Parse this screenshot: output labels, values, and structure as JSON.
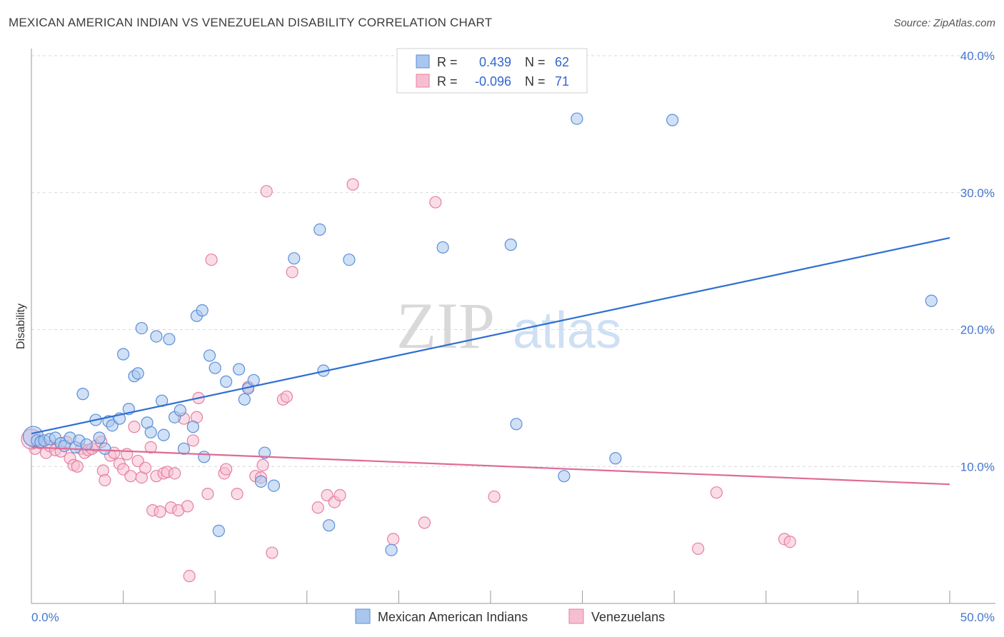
{
  "title": "MEXICAN AMERICAN INDIAN VS VENEZUELAN DISABILITY CORRELATION CHART",
  "source": "Source: ZipAtlas.com",
  "watermark": {
    "zip": "ZIP",
    "atlas": "atlas"
  },
  "chart_data": {
    "type": "scatter",
    "ylabel": "Disability",
    "xlim": [
      0,
      50
    ],
    "ylim": [
      0,
      40
    ],
    "x_tick_labels": [
      "0.0%",
      "50.0%"
    ],
    "y_ticks": [
      10,
      20,
      30,
      40
    ],
    "y_tick_labels": [
      "10.0%",
      "20.0%",
      "30.0%",
      "40.0%"
    ],
    "grid": true,
    "legend": {
      "placement": "top-center",
      "rows": [
        {
          "r_label": "R =",
          "r_value": "0.439",
          "n_label": "N =",
          "n_value": "62"
        },
        {
          "r_label": "R =",
          "r_value": "-0.096",
          "n_label": "N =",
          "n_value": "71"
        }
      ]
    },
    "colors": {
      "blue_fill": "#a9c6ee",
      "blue_stroke": "#5b8fd6",
      "blue_line": "#2e6fd1",
      "pink_fill": "#f6bfd1",
      "pink_stroke": "#e67fa2",
      "pink_line": "#e06a95"
    },
    "series": [
      {
        "name": "Mexican American Indians",
        "color": "#5b8fd6",
        "trend": {
          "x": [
            0,
            50
          ],
          "y": [
            12.4,
            26.7
          ]
        },
        "points": [
          [
            0.1,
            12.2
          ],
          [
            0.3,
            11.9
          ],
          [
            0.5,
            11.8
          ],
          [
            0.7,
            11.9
          ],
          [
            1.0,
            12.0
          ],
          [
            1.3,
            12.1
          ],
          [
            1.6,
            11.7
          ],
          [
            1.8,
            11.5
          ],
          [
            2.1,
            12.1
          ],
          [
            2.4,
            11.4
          ],
          [
            2.6,
            11.9
          ],
          [
            2.8,
            15.3
          ],
          [
            3.0,
            11.6
          ],
          [
            3.5,
            13.4
          ],
          [
            3.7,
            12.1
          ],
          [
            4.0,
            11.3
          ],
          [
            4.2,
            13.3
          ],
          [
            4.4,
            13.0
          ],
          [
            4.8,
            13.5
          ],
          [
            5.0,
            18.2
          ],
          [
            5.3,
            14.2
          ],
          [
            5.6,
            16.6
          ],
          [
            5.8,
            16.8
          ],
          [
            6.0,
            20.1
          ],
          [
            6.3,
            13.2
          ],
          [
            6.5,
            12.5
          ],
          [
            6.8,
            19.5
          ],
          [
            7.1,
            14.8
          ],
          [
            7.2,
            12.3
          ],
          [
            7.5,
            19.3
          ],
          [
            7.8,
            13.6
          ],
          [
            8.1,
            14.1
          ],
          [
            8.3,
            11.3
          ],
          [
            8.8,
            12.9
          ],
          [
            9.0,
            21.0
          ],
          [
            9.3,
            21.4
          ],
          [
            9.4,
            10.7
          ],
          [
            9.7,
            18.1
          ],
          [
            10.0,
            17.2
          ],
          [
            10.2,
            5.3
          ],
          [
            10.6,
            16.2
          ],
          [
            11.3,
            17.1
          ],
          [
            11.6,
            14.9
          ],
          [
            11.8,
            15.7
          ],
          [
            12.1,
            16.3
          ],
          [
            12.5,
            8.9
          ],
          [
            12.7,
            11.0
          ],
          [
            13.2,
            8.6
          ],
          [
            14.3,
            25.2
          ],
          [
            15.7,
            27.3
          ],
          [
            15.9,
            17.0
          ],
          [
            16.2,
            5.7
          ],
          [
            17.3,
            25.1
          ],
          [
            19.6,
            3.9
          ],
          [
            22.4,
            26.0
          ],
          [
            26.1,
            26.2
          ],
          [
            26.4,
            13.1
          ],
          [
            29.0,
            9.3
          ],
          [
            29.7,
            35.4
          ],
          [
            31.8,
            10.6
          ],
          [
            34.9,
            35.3
          ],
          [
            49.0,
            22.1
          ]
        ]
      },
      {
        "name": "Venezuelans",
        "color": "#e67fa2",
        "trend": {
          "x": [
            0,
            50
          ],
          "y": [
            11.4,
            8.7
          ]
        },
        "points": [
          [
            0.2,
            11.3
          ],
          [
            0.5,
            11.7
          ],
          [
            0.8,
            11.0
          ],
          [
            1.0,
            11.5
          ],
          [
            1.3,
            11.2
          ],
          [
            1.6,
            11.1
          ],
          [
            1.9,
            11.8
          ],
          [
            2.1,
            10.6
          ],
          [
            2.3,
            10.1
          ],
          [
            2.5,
            10.0
          ],
          [
            2.7,
            11.3
          ],
          [
            2.9,
            11.0
          ],
          [
            3.1,
            11.2
          ],
          [
            3.3,
            11.3
          ],
          [
            3.5,
            11.5
          ],
          [
            3.8,
            11.8
          ],
          [
            3.9,
            9.7
          ],
          [
            4.0,
            9.0
          ],
          [
            4.3,
            10.8
          ],
          [
            4.5,
            11.0
          ],
          [
            4.8,
            10.2
          ],
          [
            5.0,
            9.8
          ],
          [
            5.2,
            10.9
          ],
          [
            5.4,
            9.3
          ],
          [
            5.6,
            12.9
          ],
          [
            5.8,
            10.4
          ],
          [
            6.0,
            9.2
          ],
          [
            6.2,
            9.9
          ],
          [
            6.5,
            11.4
          ],
          [
            6.6,
            6.8
          ],
          [
            6.8,
            9.3
          ],
          [
            7.0,
            6.7
          ],
          [
            7.2,
            9.5
          ],
          [
            7.4,
            9.6
          ],
          [
            7.6,
            7.0
          ],
          [
            7.8,
            9.5
          ],
          [
            8.0,
            6.8
          ],
          [
            8.3,
            13.5
          ],
          [
            8.5,
            7.1
          ],
          [
            8.6,
            2.0
          ],
          [
            8.8,
            11.9
          ],
          [
            9.0,
            13.6
          ],
          [
            9.1,
            15.0
          ],
          [
            9.6,
            8.0
          ],
          [
            9.8,
            25.1
          ],
          [
            10.5,
            9.5
          ],
          [
            10.6,
            9.8
          ],
          [
            11.2,
            8.0
          ],
          [
            11.8,
            15.8
          ],
          [
            12.2,
            9.3
          ],
          [
            12.5,
            9.2
          ],
          [
            12.6,
            10.1
          ],
          [
            12.8,
            30.1
          ],
          [
            13.1,
            3.7
          ],
          [
            13.7,
            14.9
          ],
          [
            13.9,
            15.1
          ],
          [
            14.2,
            24.2
          ],
          [
            15.6,
            7.0
          ],
          [
            16.1,
            7.9
          ],
          [
            16.5,
            7.4
          ],
          [
            16.8,
            7.9
          ],
          [
            17.5,
            30.6
          ],
          [
            19.7,
            4.7
          ],
          [
            21.4,
            5.9
          ],
          [
            22.0,
            29.3
          ],
          [
            25.2,
            7.8
          ],
          [
            36.3,
            4.0
          ],
          [
            37.3,
            8.1
          ],
          [
            41.0,
            4.7
          ],
          [
            41.3,
            4.5
          ],
          [
            0.0,
            12.0
          ]
        ]
      }
    ]
  }
}
